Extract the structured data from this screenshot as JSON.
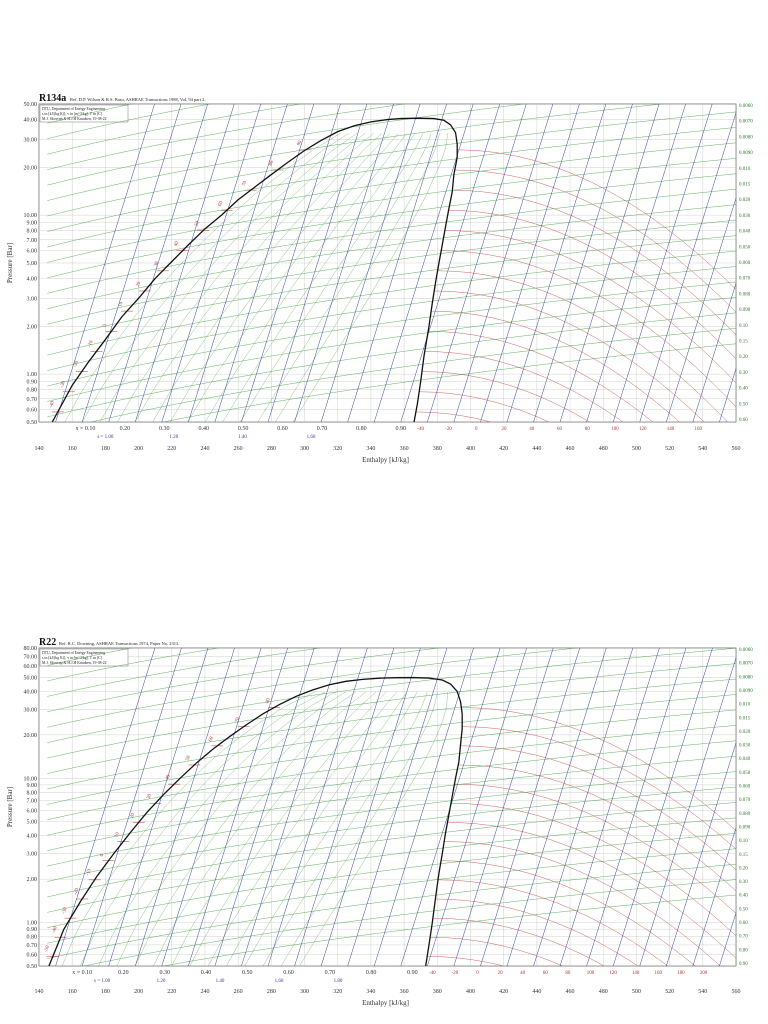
{
  "chart_data": [
    {
      "type": "line",
      "title": "R134a",
      "reference": "Ref. D.P. Wilson & R.S. Basu, ASHRAE Transactions 1988, Vol. 94 part 2.",
      "info_lines": [
        "DTU, Department of Energy Engineering",
        "s in [kJ/(kg K)], v in [m^3/kg], T in [C]",
        "M.J. Skovrup & H.J.H Knudsen, 19-08-22"
      ],
      "xlabel": "Enthalpy [kJ/kg]",
      "ylabel": "Pressure [Bar]",
      "x_log": false,
      "y_log": true,
      "xlim": [
        140,
        560
      ],
      "ylim": [
        0.5,
        50
      ],
      "x_ticks": [
        "140",
        "160",
        "180",
        "200",
        "220",
        "240",
        "260",
        "280",
        "300",
        "320",
        "340",
        "360",
        "380",
        "400",
        "420",
        "440",
        "460",
        "480",
        "500",
        "520",
        "540",
        "560"
      ],
      "y_ticks": [
        {
          "v": 50,
          "label": "50.00"
        },
        {
          "v": 40,
          "label": "40.00"
        },
        {
          "v": 30,
          "label": "30.00"
        },
        {
          "v": 20,
          "label": "20.00"
        },
        {
          "v": 10,
          "label": "10.00"
        },
        {
          "v": 9,
          "label": "9.00"
        },
        {
          "v": 8,
          "label": "8.00"
        },
        {
          "v": 7,
          "label": "7.00"
        },
        {
          "v": 6,
          "label": "6.00"
        },
        {
          "v": 5,
          "label": "5.00"
        },
        {
          "v": 4,
          "label": "4.00"
        },
        {
          "v": 3,
          "label": "3.00"
        },
        {
          "v": 2,
          "label": "2.00"
        },
        {
          "v": 1,
          "label": "1.00"
        },
        {
          "v": 0.9,
          "label": "0.90"
        },
        {
          "v": 0.8,
          "label": "0.80"
        },
        {
          "v": 0.7,
          "label": "0.70"
        },
        {
          "v": 0.6,
          "label": "0.60"
        },
        {
          "v": 0.5,
          "label": "0.50"
        }
      ],
      "grid": true,
      "saturation_dome": {
        "liquid": [
          [
            148,
            0.5
          ],
          [
            160,
            0.85
          ],
          [
            170,
            1.2
          ],
          [
            180,
            1.65
          ],
          [
            190,
            2.3
          ],
          [
            200,
            3.0
          ],
          [
            210,
            4.0
          ],
          [
            220,
            5.1
          ],
          [
            230,
            6.5
          ],
          [
            240,
            8.2
          ],
          [
            250,
            10.0
          ],
          [
            260,
            12.5
          ],
          [
            270,
            15.0
          ],
          [
            280,
            18.0
          ],
          [
            290,
            21.5
          ],
          [
            300,
            25.5
          ],
          [
            310,
            29.5
          ],
          [
            320,
            33.5
          ],
          [
            330,
            36.5
          ],
          [
            340,
            38.6
          ],
          [
            350,
            39.9
          ],
          [
            358,
            40.5
          ],
          [
            368,
            40.7
          ]
        ],
        "vapor": [
          [
            368,
            40.7
          ],
          [
            378,
            40.5
          ],
          [
            384,
            39.5
          ],
          [
            388,
            37.0
          ],
          [
            391,
            33.0
          ],
          [
            392,
            28.0
          ],
          [
            392,
            23.0
          ],
          [
            390,
            18.0
          ],
          [
            389,
            14.0
          ],
          [
            387,
            11.0
          ],
          [
            385,
            8.5
          ],
          [
            383,
            6.5
          ],
          [
            381,
            5.0
          ],
          [
            379,
            3.8
          ],
          [
            377,
            2.8
          ],
          [
            375,
            2.0
          ],
          [
            372,
            1.3
          ],
          [
            370,
            0.9
          ],
          [
            368,
            0.65
          ],
          [
            366,
            0.5
          ]
        ]
      },
      "quality_labels": [
        "x = 0.10",
        "0.20",
        "0.30",
        "0.40",
        "0.50",
        "0.60",
        "0.70",
        "0.80",
        "0.90"
      ],
      "entropy_labels": [
        "s = 1.00",
        "1.20",
        "1.40",
        "1.60"
      ],
      "isotherm_labels": [
        "-40",
        "-30",
        "-20",
        "-10",
        "0",
        "10",
        "20",
        "30",
        "40",
        "50",
        "60",
        "70",
        "80",
        "90",
        "100"
      ],
      "isotherm_x_labels": [
        "-40",
        "-20",
        "0",
        "20",
        "40",
        "60",
        "80",
        "100",
        "120",
        "140",
        "160"
      ],
      "right_volume_labels": [
        "0.0060",
        "0.0070",
        "0.0080",
        "0.0090",
        "0.010",
        "0.015",
        "0.020",
        "0.030",
        "0.040",
        "0.050",
        "0.060",
        "0.070",
        "0.080",
        "0.090",
        "0.10",
        "0.15",
        "0.20",
        "0.30",
        "0.40",
        "0.50",
        "0.60"
      ],
      "colors": {
        "isotherm": "#c0504d",
        "isochore": "#3a9a3a",
        "isentrope": "#33449a",
        "dome": "#111111",
        "grid": "#bbbbbb"
      }
    },
    {
      "type": "line",
      "title": "R22",
      "reference": "Ref. R.C. Downing, ASHRAE Transactions 1974, Paper No. 2313.",
      "info_lines": [
        "DTU, Department of Energy Engineering",
        "s in [kJ/(kg K)], v in [m^3/kg], T in [C]",
        "M.J. Skovrup & H.J.H Knudsen, 19-08-22"
      ],
      "xlabel": "Enthalpy [kJ/kg]",
      "ylabel": "Pressure [Bar]",
      "x_log": false,
      "y_log": true,
      "xlim": [
        140,
        560
      ],
      "ylim": [
        0.5,
        80
      ],
      "x_ticks": [
        "140",
        "160",
        "180",
        "200",
        "220",
        "240",
        "260",
        "280",
        "300",
        "320",
        "340",
        "360",
        "380",
        "400",
        "420",
        "440",
        "460",
        "480",
        "500",
        "520",
        "540",
        "560"
      ],
      "y_ticks": [
        {
          "v": 80,
          "label": "80.00"
        },
        {
          "v": 70,
          "label": "70.00"
        },
        {
          "v": 60,
          "label": "60.00"
        },
        {
          "v": 50,
          "label": "50.00"
        },
        {
          "v": 40,
          "label": "40.00"
        },
        {
          "v": 30,
          "label": "30.00"
        },
        {
          "v": 20,
          "label": "20.00"
        },
        {
          "v": 10,
          "label": "10.00"
        },
        {
          "v": 9,
          "label": "9.00"
        },
        {
          "v": 8,
          "label": "8.00"
        },
        {
          "v": 7,
          "label": "7.00"
        },
        {
          "v": 6,
          "label": "6.00"
        },
        {
          "v": 5,
          "label": "5.00"
        },
        {
          "v": 4,
          "label": "4.00"
        },
        {
          "v": 3,
          "label": "3.00"
        },
        {
          "v": 2,
          "label": "2.00"
        },
        {
          "v": 1,
          "label": "1.00"
        },
        {
          "v": 0.9,
          "label": "0.90"
        },
        {
          "v": 0.8,
          "label": "0.80"
        },
        {
          "v": 0.7,
          "label": "0.70"
        },
        {
          "v": 0.6,
          "label": "0.60"
        },
        {
          "v": 0.5,
          "label": "0.50"
        }
      ],
      "grid": true,
      "saturation_dome": {
        "liquid": [
          [
            146,
            0.5
          ],
          [
            155,
            0.9
          ],
          [
            165,
            1.4
          ],
          [
            175,
            2.1
          ],
          [
            185,
            3.0
          ],
          [
            195,
            4.2
          ],
          [
            205,
            5.8
          ],
          [
            215,
            7.7
          ],
          [
            225,
            10.0
          ],
          [
            235,
            12.8
          ],
          [
            245,
            16.0
          ],
          [
            255,
            19.5
          ],
          [
            265,
            23.5
          ],
          [
            275,
            28.0
          ],
          [
            285,
            32.5
          ],
          [
            295,
            37.0
          ],
          [
            305,
            41.0
          ],
          [
            315,
            44.5
          ],
          [
            325,
            47.0
          ],
          [
            335,
            48.5
          ],
          [
            345,
            49.4
          ],
          [
            355,
            49.8
          ],
          [
            365,
            49.9
          ]
        ],
        "vapor": [
          [
            365,
            49.9
          ],
          [
            375,
            49.5
          ],
          [
            383,
            48.0
          ],
          [
            388,
            45.0
          ],
          [
            392,
            40.0
          ],
          [
            394,
            34.0
          ],
          [
            395,
            28.0
          ],
          [
            395,
            22.0
          ],
          [
            394,
            17.0
          ],
          [
            393,
            13.0
          ],
          [
            391,
            10.0
          ],
          [
            389,
            7.5
          ],
          [
            387,
            5.6
          ],
          [
            385,
            4.2
          ],
          [
            383,
            3.0
          ],
          [
            381,
            2.2
          ],
          [
            379,
            1.5
          ],
          [
            377,
            1.0
          ],
          [
            375,
            0.7
          ],
          [
            373,
            0.5
          ]
        ]
      },
      "quality_labels": [
        "x = 0.10",
        "0.20",
        "0.30",
        "0.40",
        "0.50",
        "0.60",
        "0.70",
        "0.80",
        "0.90"
      ],
      "entropy_labels": [
        "s = 1.00",
        "1.20",
        "1.40",
        "1.60",
        "1.80"
      ],
      "isotherm_labels": [
        "-50",
        "-40",
        "-30",
        "-20",
        "-10",
        "0",
        "10",
        "20",
        "30",
        "40",
        "50",
        "60",
        "70",
        "80",
        "90"
      ],
      "isotherm_x_labels": [
        "-40",
        "-20",
        "0",
        "20",
        "40",
        "60",
        "80",
        "100",
        "120",
        "140",
        "160",
        "180",
        "200"
      ],
      "right_volume_labels": [
        "0.0060",
        "0.0070",
        "0.0080",
        "0.0090",
        "0.010",
        "0.015",
        "0.020",
        "0.030",
        "0.040",
        "0.050",
        "0.060",
        "0.070",
        "0.080",
        "0.090",
        "0.10",
        "0.15",
        "0.20",
        "0.30",
        "0.40",
        "0.50",
        "0.60",
        "0.70",
        "0.80",
        "0.90"
      ],
      "colors": {
        "isotherm": "#c0504d",
        "isochore": "#3a9a3a",
        "isentrope": "#33449a",
        "dome": "#111111",
        "grid": "#bbbbbb"
      }
    }
  ]
}
